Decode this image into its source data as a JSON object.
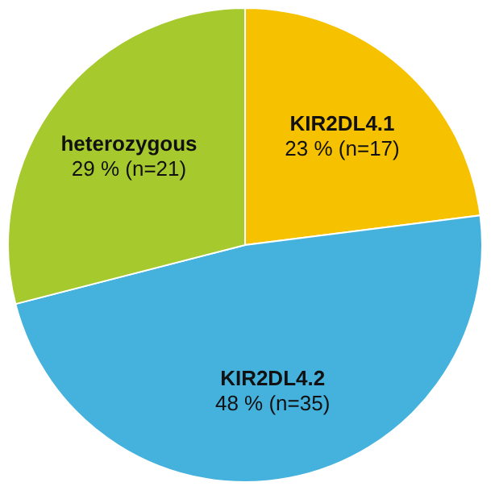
{
  "chart_data": {
    "type": "pie",
    "categories": [
      "KIR2DL4.1",
      "KIR2DL4.2",
      "heterozygous"
    ],
    "values": [
      23,
      48,
      29
    ],
    "colors": [
      "#f6c200",
      "#45b2de",
      "#a6c92e"
    ],
    "value_labels": [
      "23 % (n=17)",
      "48 % (n=35)",
      "29 % (n=21)"
    ]
  }
}
